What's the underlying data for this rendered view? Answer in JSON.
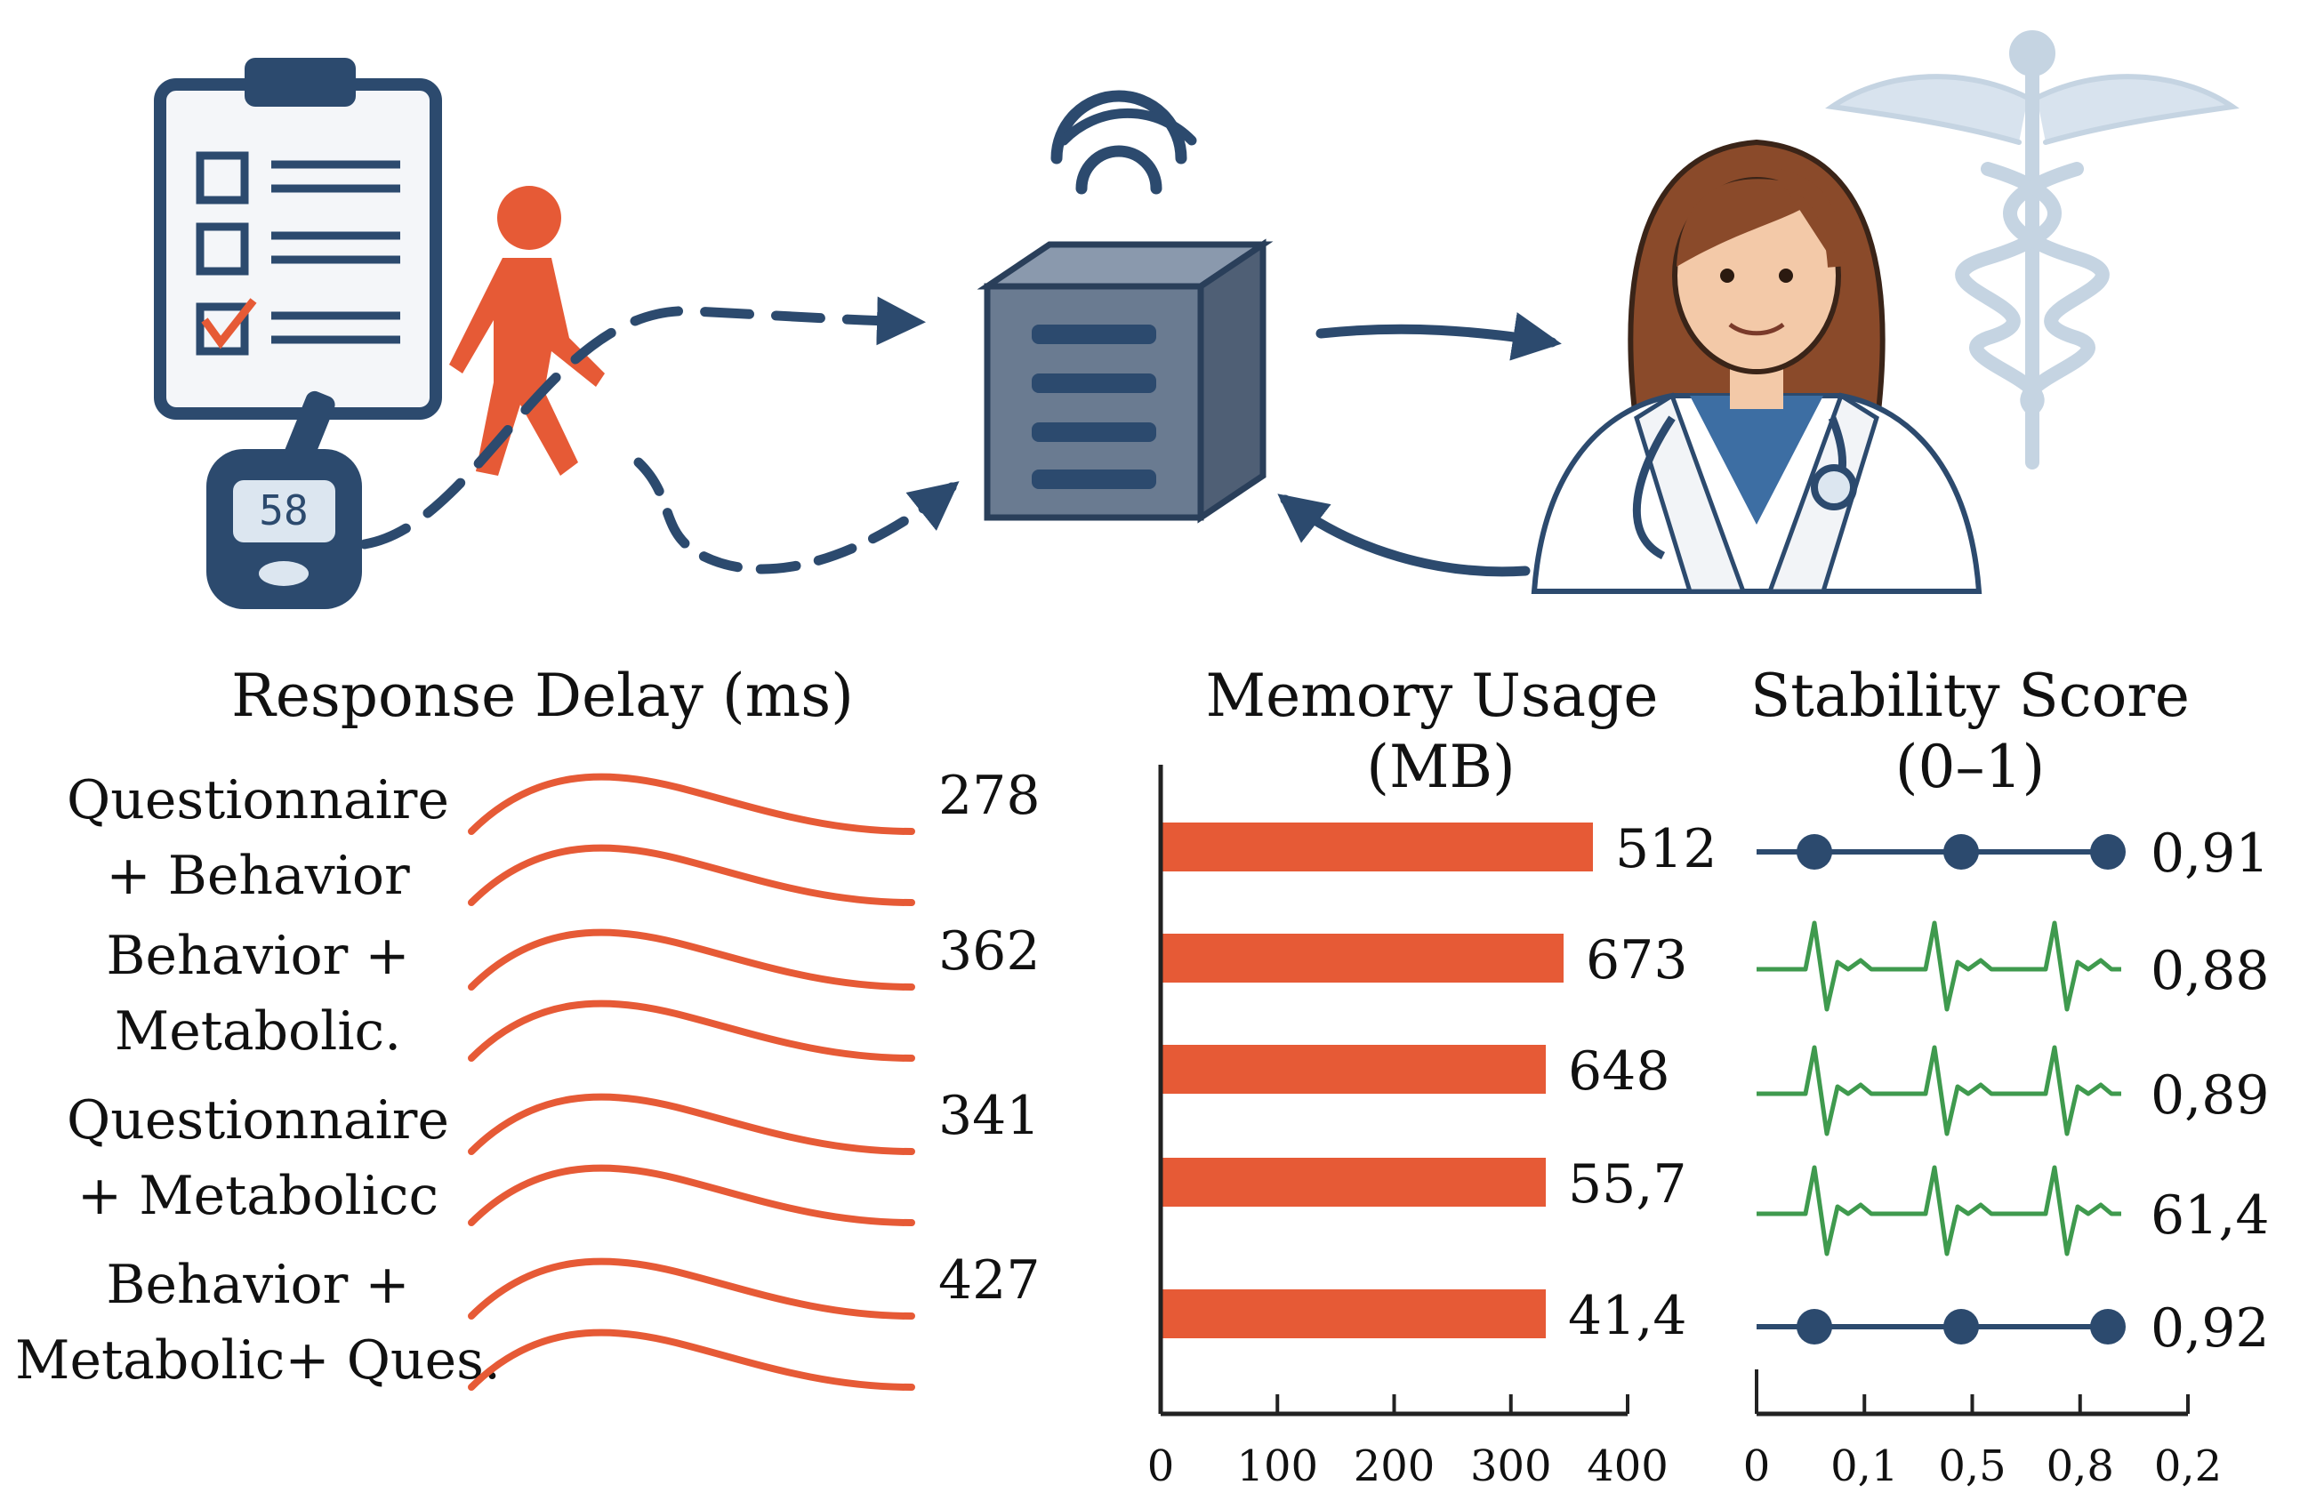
{
  "colors": {
    "navy": "#2c4a6e",
    "orange": "#e65a36",
    "green": "#3f9a4e",
    "steel": "#6a7b91",
    "clipboard": "#f4f6f9",
    "skin": "#f3c9a8",
    "hair": "#8a4a2a",
    "coat": "#ffffff",
    "caduceus": "#c5d4e2"
  },
  "illustration": {
    "icons": [
      "clipboard-checklist-icon",
      "walking-person-icon",
      "glucose-meter-icon",
      "wifi-icon",
      "server-icon",
      "doctor-icon",
      "caduceus-icon"
    ],
    "meter_reading": "58"
  },
  "chart_data": [
    {
      "type": "line",
      "title": "Response Delay (ms)",
      "categories": [
        "Questionnaire + Behavior",
        "Behavior + Metabolic.",
        "Questionnaire + Metabolic",
        "Behavior + Metabolic+ Ques."
      ],
      "category_lines": [
        [
          "Questionnaire",
          "+ Behavior"
        ],
        [
          "Behavior +",
          "Metabolic."
        ],
        [
          "Questionnaire",
          "+ Metabolicc"
        ],
        [
          "Behavior +",
          "Metabolic+ Ques."
        ]
      ],
      "values": [
        278,
        362,
        341,
        427
      ],
      "value_labels": [
        "278",
        "362",
        "341",
        "427"
      ]
    },
    {
      "type": "bar",
      "title_lines": [
        "Memory Usage",
        "(MB)"
      ],
      "values": [
        512,
        673,
        648,
        55.7,
        41.4
      ],
      "value_labels": [
        "512",
        "673",
        "648",
        "55,7",
        "41,4"
      ],
      "x_ticks": [
        "0",
        "100",
        "200",
        "300",
        "400"
      ],
      "xlim": [
        0,
        400
      ]
    },
    {
      "type": "line",
      "title_lines": [
        "Stability Score",
        "(0–1)"
      ],
      "values": [
        0.91,
        0.88,
        0.89,
        61.4,
        0.92
      ],
      "value_labels": [
        "0,91",
        "0,88",
        "0,89",
        "61,4",
        "0,92"
      ],
      "styles": [
        "dots",
        "ecg",
        "ecg",
        "ecg",
        "dots"
      ],
      "x_ticks": [
        "0",
        "0,1",
        "0,5",
        "0,8",
        "0,2"
      ]
    }
  ]
}
